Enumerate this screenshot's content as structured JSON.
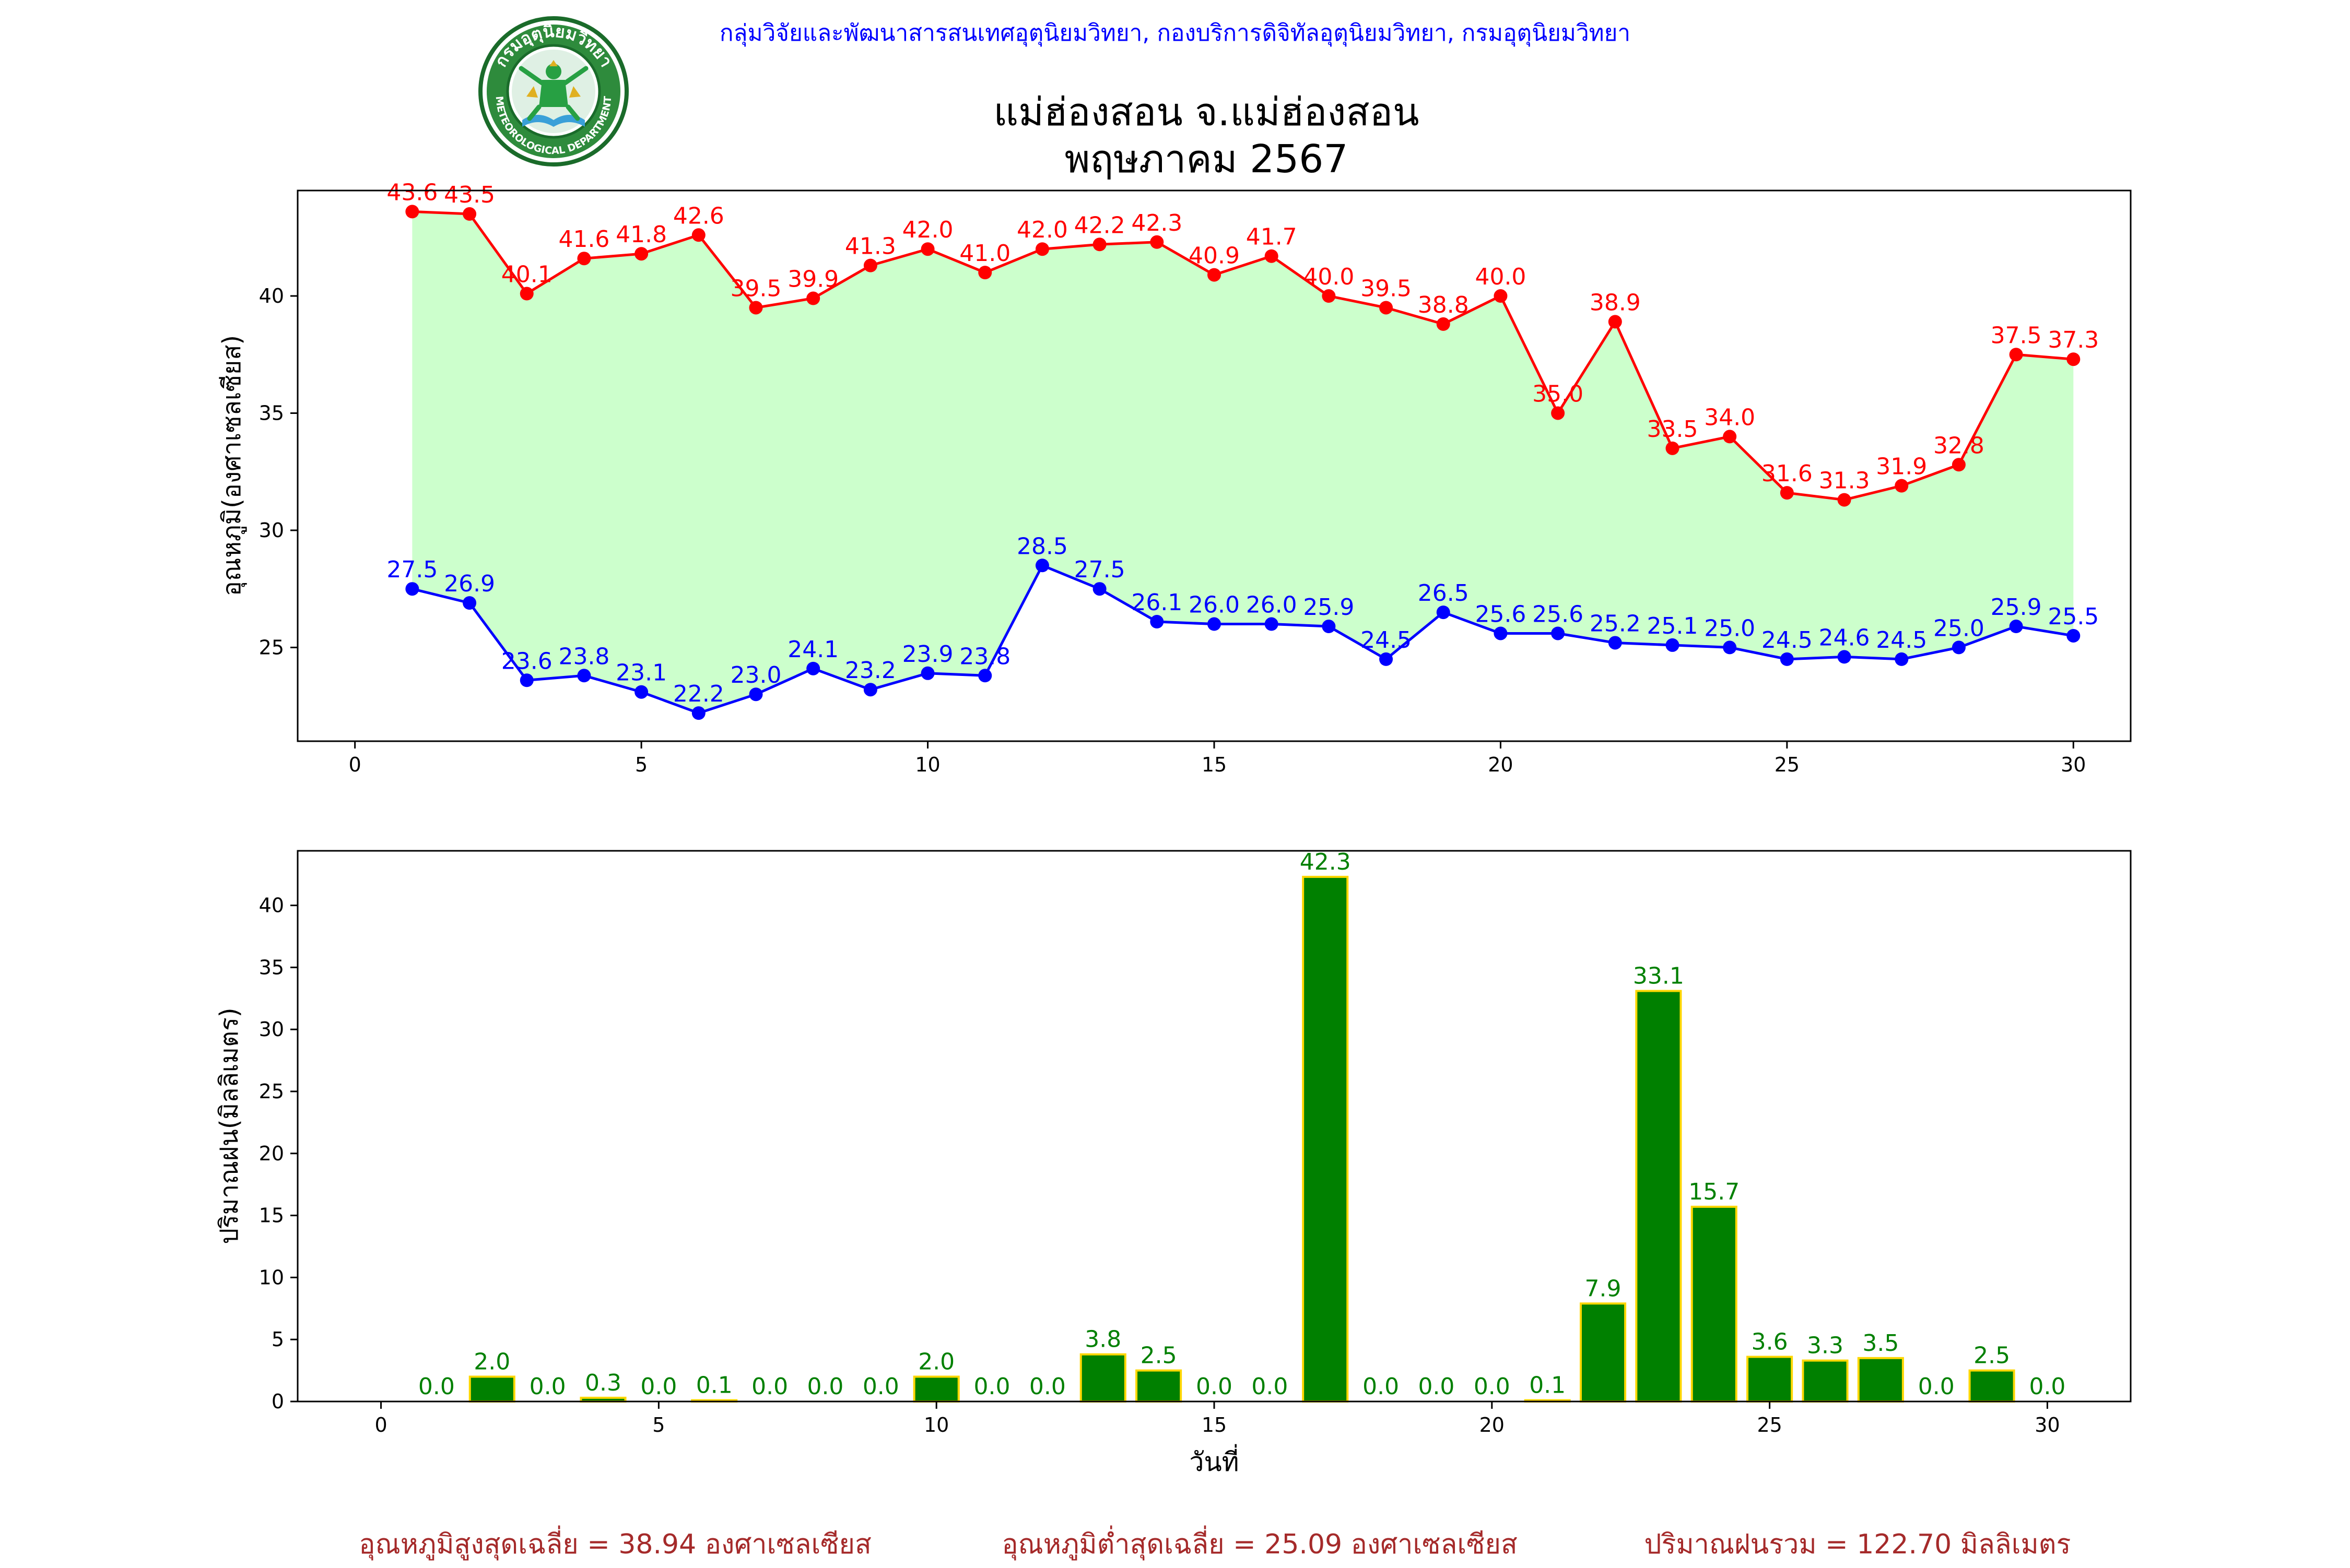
{
  "header": {
    "agency": "กลุ่มวิจัยและพัฒนาสารสนเทศอุตุนิยมวิทยา, กองบริการดิจิทัลอุตุนิยมวิทยา, กรมอุตุนิยมวิทยา",
    "title_line1": "แม่ฮ่องสอน จ.แม่ฮ่องสอน",
    "title_line2": "พฤษภาคม 2567",
    "logo_top_text": "กรมอุตุนิยมวิทยา",
    "logo_bottom_text": "METEOROLOGICAL DEPARTMENT"
  },
  "colors": {
    "max": "#ff0000",
    "min": "#0000ff",
    "fill": "#ccffcc",
    "bar": "#008000",
    "bar_edge": "#ffd700",
    "bar_label": "#008000",
    "summary": "#a52a2a",
    "agency": "#0000ff"
  },
  "chart_data": [
    {
      "type": "line",
      "ylabel": "อุณหภูมิ(องศาเซลเซียส)",
      "xlim": [
        -1,
        31
      ],
      "ylim": [
        21.0,
        44.5
      ],
      "xticks": [
        0,
        5,
        10,
        15,
        20,
        25,
        30
      ],
      "yticks": [
        25,
        30,
        35,
        40
      ],
      "x": [
        1,
        2,
        3,
        4,
        5,
        6,
        7,
        8,
        9,
        10,
        11,
        12,
        13,
        14,
        15,
        16,
        17,
        18,
        19,
        20,
        21,
        22,
        23,
        24,
        25,
        26,
        27,
        28,
        29,
        30
      ],
      "series": [
        {
          "key": "max",
          "values": [
            43.6,
            43.5,
            40.1,
            41.6,
            41.8,
            42.6,
            39.5,
            39.9,
            41.3,
            42.0,
            41.0,
            42.0,
            42.2,
            42.3,
            40.9,
            41.7,
            40.0,
            39.5,
            38.8,
            40.0,
            35.0,
            38.9,
            33.5,
            34.0,
            31.6,
            31.3,
            31.9,
            32.8,
            37.5,
            37.3
          ]
        },
        {
          "key": "min",
          "values": [
            27.5,
            26.9,
            23.6,
            23.8,
            23.1,
            22.2,
            23.0,
            24.1,
            23.2,
            23.9,
            23.8,
            28.5,
            27.5,
            26.1,
            26.0,
            26.0,
            25.9,
            24.5,
            26.5,
            25.6,
            25.6,
            25.2,
            25.1,
            25.0,
            24.5,
            24.6,
            24.5,
            25.0,
            25.9,
            25.5
          ]
        }
      ]
    },
    {
      "type": "bar",
      "ylabel": "ปริมาณฝน(มิลลิเมตร)",
      "xlabel": "วันที่",
      "xlim": [
        -1.5,
        31.5
      ],
      "ylim": [
        0,
        44.4
      ],
      "xticks": [
        0,
        5,
        10,
        15,
        20,
        25,
        30
      ],
      "yticks": [
        0,
        5,
        10,
        15,
        20,
        25,
        30,
        35,
        40
      ],
      "x": [
        1,
        2,
        3,
        4,
        5,
        6,
        7,
        8,
        9,
        10,
        11,
        12,
        13,
        14,
        15,
        16,
        17,
        18,
        19,
        20,
        21,
        22,
        23,
        24,
        25,
        26,
        27,
        28,
        29,
        30
      ],
      "values": [
        0.0,
        2.0,
        0.0,
        0.3,
        0.0,
        0.1,
        0.0,
        0.0,
        0.0,
        2.0,
        0.0,
        0.0,
        3.8,
        2.5,
        0.0,
        0.0,
        42.3,
        0.0,
        0.0,
        0.0,
        0.1,
        7.9,
        33.1,
        15.7,
        3.6,
        3.3,
        3.5,
        0.0,
        2.5,
        0.0
      ]
    }
  ],
  "summary": {
    "avg_max": "อุณหภูมิสูงสุดเฉลี่ย = 38.94 องศาเซลเซียส",
    "avg_min": "อุณหภูมิต่ำสุดเฉลี่ย = 25.09 องศาเซลเซียส",
    "total_rain": "ปริมาณฝนรวม = 122.70 มิลลิเมตร"
  }
}
